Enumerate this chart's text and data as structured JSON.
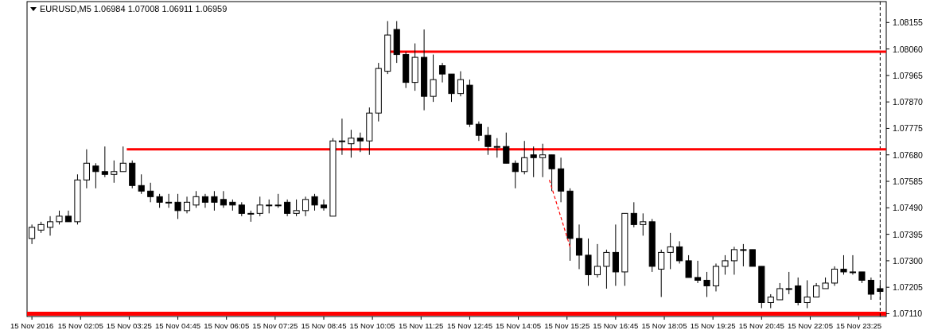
{
  "chart_data": {
    "type": "candlestick",
    "title": "EURUSD,M5  1.06984 1.07008 1.06911 1.06959",
    "x": [
      "2016-11-15T00:45",
      "2016-11-15T01:00",
      "2016-11-15T01:15",
      "2016-11-15T01:30",
      "2016-11-15T01:45",
      "2016-11-15T02:00",
      "2016-11-15T02:15",
      "2016-11-15T02:30",
      "2016-11-15T02:45",
      "2016-11-15T03:00",
      "2016-11-15T03:15",
      "2016-11-15T03:30",
      "2016-11-15T03:45",
      "2016-11-15T04:00",
      "2016-11-15T04:15",
      "2016-11-15T04:30",
      "2016-11-15T04:45",
      "2016-11-15T05:00",
      "2016-11-15T05:15",
      "2016-11-15T05:30",
      "2016-11-15T05:45",
      "2016-11-15T06:00",
      "2016-11-15T06:15",
      "2016-11-15T06:30",
      "2016-11-15T06:45",
      "2016-11-15T07:00",
      "2016-11-15T07:15",
      "2016-11-15T07:30",
      "2016-11-15T07:45",
      "2016-11-15T08:00",
      "2016-11-15T08:15",
      "2016-11-15T08:30",
      "2016-11-15T08:45",
      "2016-11-15T09:00",
      "2016-11-15T09:15",
      "2016-11-15T09:30",
      "2016-11-15T09:45",
      "2016-11-15T10:00",
      "2016-11-15T10:15",
      "2016-11-15T10:30",
      "2016-11-15T10:45",
      "2016-11-15T11:00",
      "2016-11-15T11:15",
      "2016-11-15T11:30",
      "2016-11-15T11:45",
      "2016-11-15T12:00",
      "2016-11-15T12:15",
      "2016-11-15T12:30",
      "2016-11-15T12:45",
      "2016-11-15T13:00",
      "2016-11-15T13:15",
      "2016-11-15T13:30",
      "2016-11-15T13:45",
      "2016-11-15T14:00",
      "2016-11-15T14:15",
      "2016-11-15T14:30",
      "2016-11-15T14:45",
      "2016-11-15T15:00",
      "2016-11-15T15:15",
      "2016-11-15T15:30",
      "2016-11-15T15:45",
      "2016-11-15T16:00",
      "2016-11-15T16:15",
      "2016-11-15T16:30",
      "2016-11-15T16:45",
      "2016-11-15T17:00",
      "2016-11-15T17:15",
      "2016-11-15T17:30",
      "2016-11-15T17:45",
      "2016-11-15T18:00",
      "2016-11-15T18:15",
      "2016-11-15T18:30",
      "2016-11-15T18:45",
      "2016-11-15T19:00",
      "2016-11-15T19:15",
      "2016-11-15T19:30",
      "2016-11-15T19:45",
      "2016-11-15T20:00",
      "2016-11-15T20:15",
      "2016-11-15T20:30",
      "2016-11-15T20:45",
      "2016-11-15T21:00",
      "2016-11-15T21:15",
      "2016-11-15T21:30",
      "2016-11-15T21:45",
      "2016-11-15T22:00",
      "2016-11-15T22:15",
      "2016-11-15T22:30",
      "2016-11-15T22:45",
      "2016-11-15T23:00",
      "2016-11-15T23:15",
      "2016-11-15T23:30",
      "2016-11-15T23:45",
      "2016-11-16T00:00"
    ],
    "ohlc": [
      [
        1.0738,
        1.0743,
        1.0736,
        1.0742
      ],
      [
        1.0741,
        1.0744,
        1.074,
        1.0743
      ],
      [
        1.0742,
        1.0746,
        1.0739,
        1.0744
      ],
      [
        1.0744,
        1.0748,
        1.0743,
        1.0746
      ],
      [
        1.0746,
        1.0748,
        1.0744,
        1.0744
      ],
      [
        1.0744,
        1.0761,
        1.0743,
        1.0759
      ],
      [
        1.0759,
        1.077,
        1.0756,
        1.0765
      ],
      [
        1.0764,
        1.0765,
        1.0756,
        1.0762
      ],
      [
        1.0762,
        1.0771,
        1.076,
        1.0761
      ],
      [
        1.0761,
        1.0766,
        1.0758,
        1.0762
      ],
      [
        1.0762,
        1.0771,
        1.0762,
        1.0765
      ],
      [
        1.0765,
        1.0766,
        1.0756,
        1.0757
      ],
      [
        1.0757,
        1.0761,
        1.0754,
        1.0755
      ],
      [
        1.0755,
        1.0758,
        1.0751,
        1.0753
      ],
      [
        1.0753,
        1.0754,
        1.0749,
        1.0751
      ],
      [
        1.0751,
        1.0754,
        1.0749,
        1.0751
      ],
      [
        1.0751,
        1.0754,
        1.0745,
        1.0748
      ],
      [
        1.0748,
        1.0753,
        1.0747,
        1.0751
      ],
      [
        1.075,
        1.0755,
        1.0749,
        1.0753
      ],
      [
        1.0753,
        1.0754,
        1.0749,
        1.0751
      ],
      [
        1.0753,
        1.0755,
        1.0748,
        1.0751
      ],
      [
        1.0752,
        1.0755,
        1.0749,
        1.075
      ],
      [
        1.0751,
        1.0752,
        1.0748,
        1.075
      ],
      [
        1.075,
        1.0751,
        1.0746,
        1.0747
      ],
      [
        1.0747,
        1.0748,
        1.0744,
        1.0747
      ],
      [
        1.0747,
        1.0753,
        1.0746,
        1.075
      ],
      [
        1.075,
        1.0752,
        1.0747,
        1.075
      ],
      [
        1.075,
        1.0754,
        1.0749,
        1.075
      ],
      [
        1.0751,
        1.0752,
        1.0746,
        1.0747
      ],
      [
        1.0747,
        1.0752,
        1.0746,
        1.0748
      ],
      [
        1.0748,
        1.0753,
        1.0746,
        1.0752
      ],
      [
        1.0753,
        1.0754,
        1.0748,
        1.075
      ],
      [
        1.075,
        1.0752,
        1.0748,
        1.0749
      ],
      [
        1.0746,
        1.0774,
        1.0746,
        1.0773
      ],
      [
        1.0773,
        1.0781,
        1.0768,
        1.0773
      ],
      [
        1.0772,
        1.0777,
        1.0767,
        1.0774
      ],
      [
        1.0774,
        1.0776,
        1.0769,
        1.0773
      ],
      [
        1.0773,
        1.0785,
        1.0768,
        1.0783
      ],
      [
        1.0783,
        1.0801,
        1.078,
        1.0799
      ],
      [
        1.0798,
        1.0816,
        1.0797,
        1.0811
      ],
      [
        1.0813,
        1.0816,
        1.0801,
        1.0804
      ],
      [
        1.0804,
        1.0805,
        1.0792,
        1.0794
      ],
      [
        1.0794,
        1.0808,
        1.0791,
        1.0803
      ],
      [
        1.0803,
        1.0813,
        1.0784,
        1.0789
      ],
      [
        1.0789,
        1.0804,
        1.0787,
        1.0795
      ],
      [
        1.08,
        1.0801,
        1.0794,
        1.0797
      ],
      [
        1.0797,
        1.0797,
        1.0787,
        1.079
      ],
      [
        1.079,
        1.0798,
        1.0789,
        1.0795
      ],
      [
        1.0793,
        1.0795,
        1.0778,
        1.0779
      ],
      [
        1.0779,
        1.078,
        1.0773,
        1.0775
      ],
      [
        1.0775,
        1.0778,
        1.0768,
        1.0771
      ],
      [
        1.0771,
        1.0774,
        1.0767,
        1.0771
      ],
      [
        1.0771,
        1.0776,
        1.0765,
        1.0765
      ],
      [
        1.0765,
        1.0766,
        1.0756,
        1.0762
      ],
      [
        1.0762,
        1.0773,
        1.0761,
        1.0767
      ],
      [
        1.0768,
        1.0771,
        1.076,
        1.0767
      ],
      [
        1.0767,
        1.0772,
        1.076,
        1.0768
      ],
      [
        1.0768,
        1.0768,
        1.0755,
        1.0763
      ],
      [
        1.0763,
        1.0767,
        1.0751,
        1.0755
      ],
      [
        1.0755,
        1.0756,
        1.073,
        1.0738
      ],
      [
        1.0738,
        1.0743,
        1.0727,
        1.0732
      ],
      [
        1.0732,
        1.0738,
        1.0721,
        1.0725
      ],
      [
        1.0725,
        1.0736,
        1.0724,
        1.0728
      ],
      [
        1.0728,
        1.0734,
        1.072,
        1.0733
      ],
      [
        1.0733,
        1.0743,
        1.0721,
        1.0726
      ],
      [
        1.0726,
        1.0747,
        1.0721,
        1.0747
      ],
      [
        1.0747,
        1.0751,
        1.0742,
        1.0743
      ],
      [
        1.0743,
        1.0747,
        1.0739,
        1.0744
      ],
      [
        1.0744,
        1.0745,
        1.0726,
        1.0728
      ],
      [
        1.0727,
        1.0734,
        1.0717,
        1.0733
      ],
      [
        1.0733,
        1.074,
        1.0727,
        1.0735
      ],
      [
        1.0735,
        1.0737,
        1.0729,
        1.073
      ],
      [
        1.073,
        1.0732,
        1.0724,
        1.0724
      ],
      [
        1.0724,
        1.073,
        1.0722,
        1.0723
      ],
      [
        1.0723,
        1.0726,
        1.0717,
        1.0721
      ],
      [
        1.0721,
        1.0729,
        1.0719,
        1.0728
      ],
      [
        1.0728,
        1.0732,
        1.0725,
        1.073
      ],
      [
        1.073,
        1.0735,
        1.0725,
        1.0734
      ],
      [
        1.0734,
        1.0736,
        1.0728,
        1.0734
      ],
      [
        1.0734,
        1.0734,
        1.0728,
        1.0728
      ],
      [
        1.0728,
        1.0728,
        1.0713,
        1.0715
      ],
      [
        1.0715,
        1.0718,
        1.0713,
        1.0717
      ],
      [
        1.0716,
        1.0722,
        1.0716,
        1.072
      ],
      [
        1.072,
        1.0726,
        1.0718,
        1.072
      ],
      [
        1.0721,
        1.0724,
        1.0714,
        1.0715
      ],
      [
        1.0715,
        1.0723,
        1.0713,
        1.0717
      ],
      [
        1.0717,
        1.0722,
        1.0717,
        1.0721
      ],
      [
        1.072,
        1.0724,
        1.072,
        1.0722
      ],
      [
        1.0722,
        1.0728,
        1.0721,
        1.0727
      ],
      [
        1.0727,
        1.0732,
        1.0725,
        1.0726
      ],
      [
        1.0726,
        1.0732,
        1.0725,
        1.0726
      ],
      [
        1.0726,
        1.0726,
        1.0722,
        1.0723
      ],
      [
        1.0723,
        1.0724,
        1.0716,
        1.0718
      ],
      [
        1.072,
        1.0722,
        1.0716,
        1.0719
      ]
    ],
    "series": [
      {
        "type": "line",
        "color": "#ff0000",
        "x": [
          "2016-11-15T10:30",
          "2016-11-16T00:10"
        ],
        "values": [
          1.0805,
          1.0805
        ]
      },
      {
        "type": "line",
        "color": "#ff0000",
        "x": [
          "2016-11-15T03:21",
          "2016-11-16T00:10"
        ],
        "values": [
          1.077,
          1.077
        ]
      },
      {
        "type": "line",
        "color": "#ff0000",
        "line_style": "dashed",
        "x": [
          "2016-11-15T14:56",
          "2016-11-15T15:30"
        ],
        "values": [
          1.0759,
          1.0735
        ]
      }
    ],
    "ref_lines": [
      {
        "axis": "y",
        "value": 1.0711,
        "color": "#ff0000"
      },
      {
        "axis": "x",
        "value": "2016-11-16T00:00",
        "color": "#000000",
        "line_style": "dashed"
      }
    ],
    "xlim": [
      "2016-11-15T00:37",
      "2016-11-16T00:10"
    ],
    "ylim": [
      1.071,
      1.0823
    ],
    "xticks": [
      {
        "value": "2016-11-15T00:45",
        "label": "15 Nov 2016"
      },
      {
        "value": "2016-11-15T02:05",
        "label": "15 Nov 02:05"
      },
      {
        "value": "2016-11-15T03:25",
        "label": "15 Nov 03:25"
      },
      {
        "value": "2016-11-15T04:45",
        "label": "15 Nov 04:45"
      },
      {
        "value": "2016-11-15T06:05",
        "label": "15 Nov 06:05"
      },
      {
        "value": "2016-11-15T07:25",
        "label": "15 Nov 07:25"
      },
      {
        "value": "2016-11-15T08:45",
        "label": "15 Nov 08:45"
      },
      {
        "value": "2016-11-15T10:05",
        "label": "15 Nov 10:05"
      },
      {
        "value": "2016-11-15T11:25",
        "label": "15 Nov 11:25"
      },
      {
        "value": "2016-11-15T12:45",
        "label": "15 Nov 12:45"
      },
      {
        "value": "2016-11-15T14:05",
        "label": "15 Nov 14:05"
      },
      {
        "value": "2016-11-15T15:25",
        "label": "15 Nov 15:25"
      },
      {
        "value": "2016-11-15T16:45",
        "label": "15 Nov 16:45"
      },
      {
        "value": "2016-11-15T18:05",
        "label": "15 Nov 18:05"
      },
      {
        "value": "2016-11-15T19:25",
        "label": "15 Nov 19:25"
      },
      {
        "value": "2016-11-15T20:45",
        "label": "15 Nov 20:45"
      },
      {
        "value": "2016-11-15T22:05",
        "label": "15 Nov 22:05"
      },
      {
        "value": "2016-11-15T23:25",
        "label": "15 Nov 23:25"
      }
    ],
    "yticks": [
      {
        "value": 1.0711,
        "label": "1.07110"
      },
      {
        "value": 1.07205,
        "label": "1.07205"
      },
      {
        "value": 1.073,
        "label": "1.07300"
      },
      {
        "value": 1.07395,
        "label": "1.07395"
      },
      {
        "value": 1.0749,
        "label": "1.07490"
      },
      {
        "value": 1.07585,
        "label": "1.07585"
      },
      {
        "value": 1.0768,
        "label": "1.07680"
      },
      {
        "value": 1.07775,
        "label": "1.07775"
      },
      {
        "value": 1.0787,
        "label": "1.07870"
      },
      {
        "value": 1.07965,
        "label": "1.07965"
      },
      {
        "value": 1.0806,
        "label": "1.08060"
      },
      {
        "value": 1.08155,
        "label": "1.08155"
      }
    ]
  }
}
